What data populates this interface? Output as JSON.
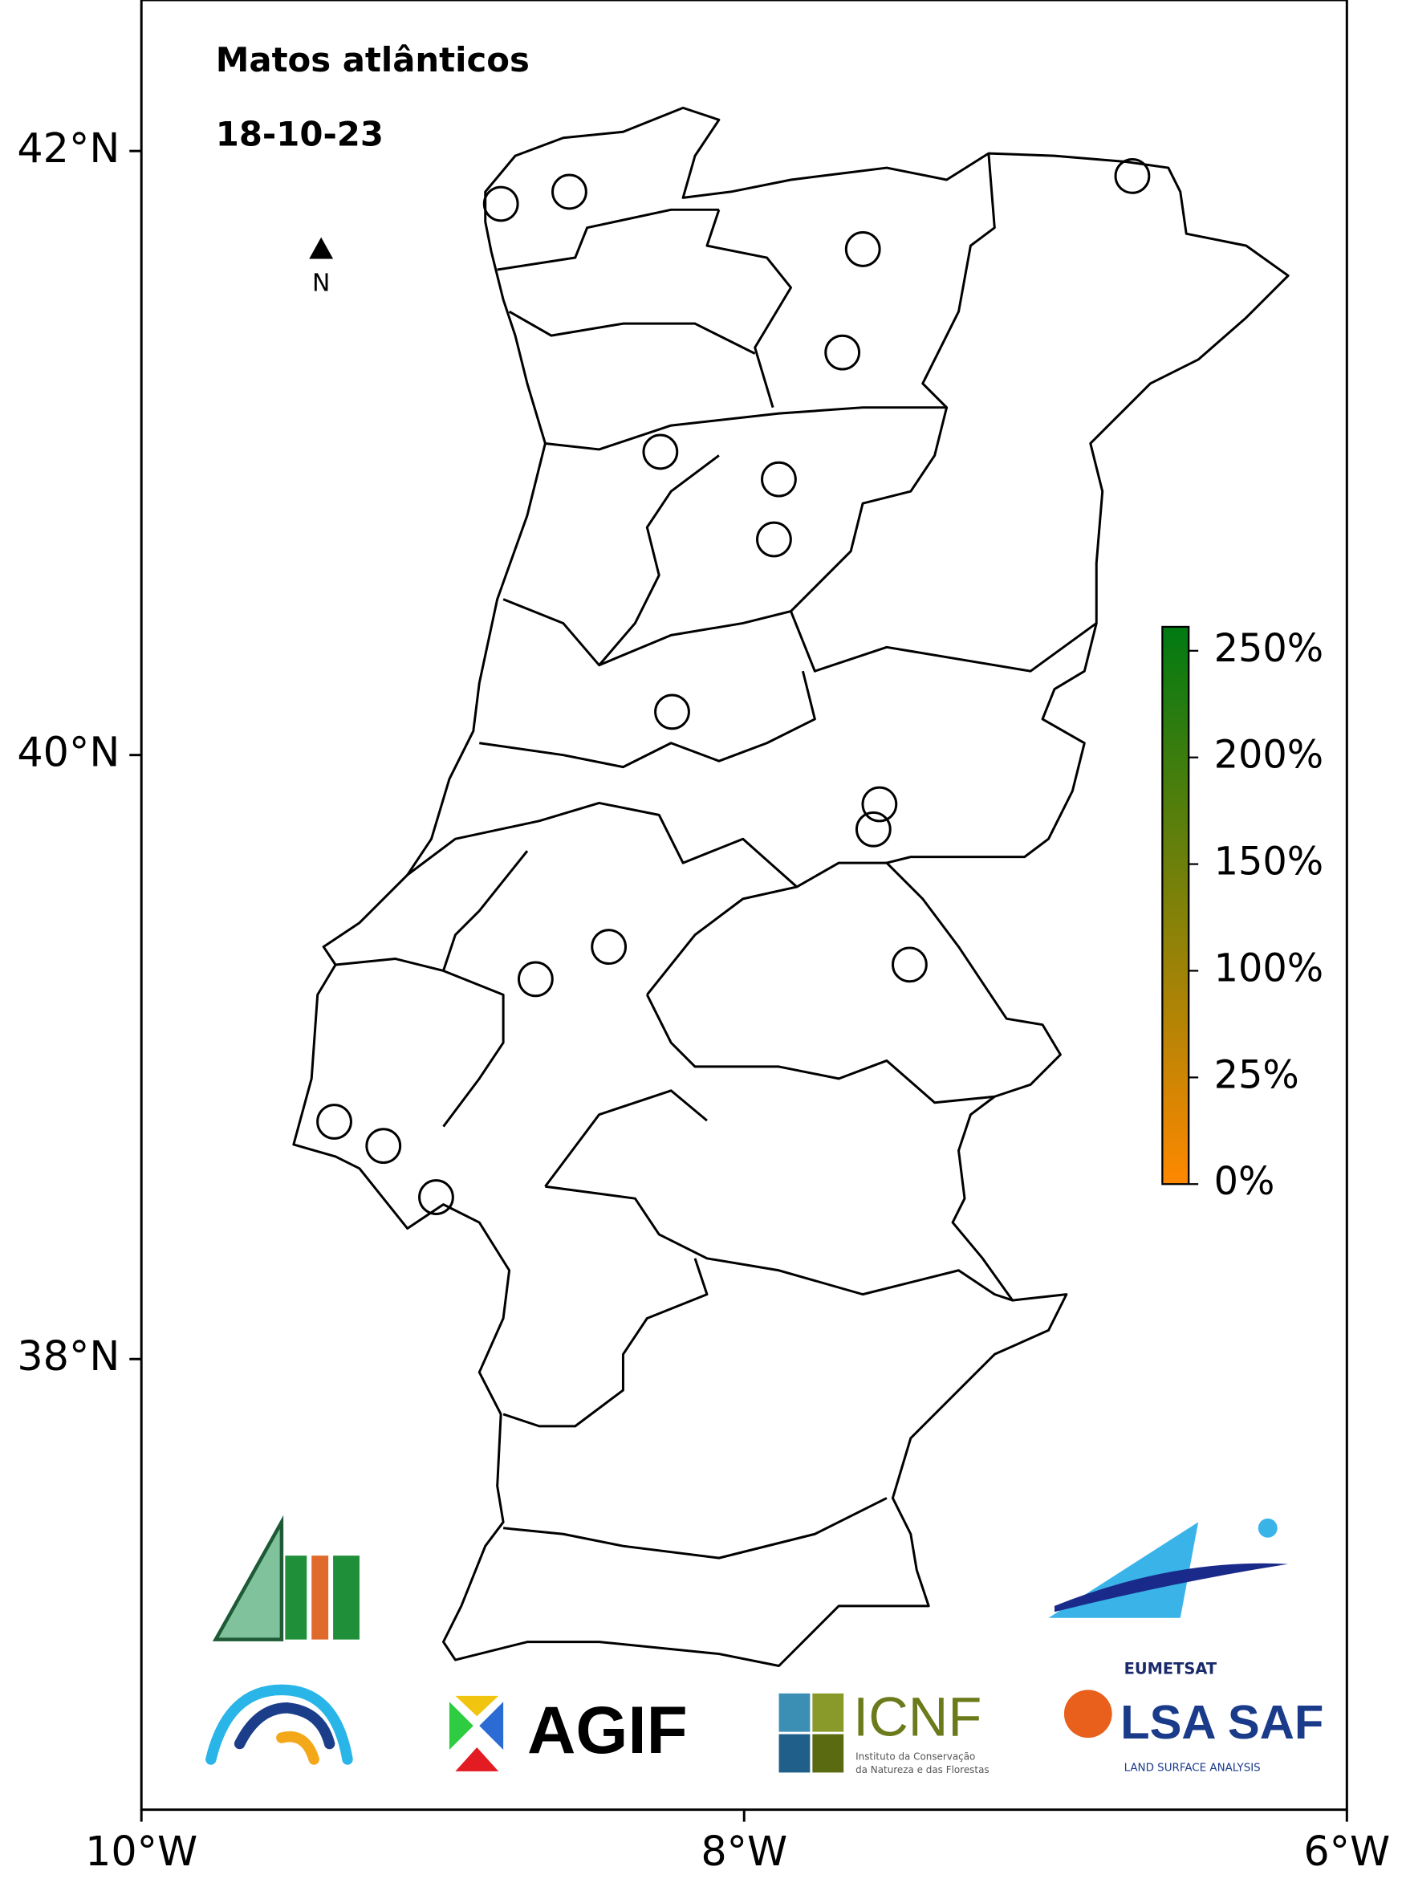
{
  "chart_data": {
    "type": "map",
    "title": "Matos atlânticos",
    "subtitle": "18-10-23",
    "north_label": "N",
    "xlim": [
      -10,
      -6
    ],
    "ylim": [
      36.5,
      42.5
    ],
    "xticks": [
      {
        "value": -10,
        "label": "10°W"
      },
      {
        "value": -8,
        "label": "8°W"
      },
      {
        "value": -6,
        "label": "6°W"
      }
    ],
    "yticks": [
      {
        "value": 38,
        "label": "38°N"
      },
      {
        "value": 40,
        "label": "40°N"
      },
      {
        "value": 42,
        "label": "42°N"
      }
    ],
    "points": {
      "lon": [
        -8.807,
        -8.58,
        -7.606,
        -7.674,
        -6.712,
        -8.278,
        -7.885,
        -7.901,
        -8.239,
        -7.551,
        -7.571,
        -8.449,
        -8.692,
        -7.451,
        -9.36,
        -9.197,
        -9.022
      ],
      "lat": [
        41.825,
        41.865,
        41.675,
        41.333,
        41.917,
        41.004,
        40.913,
        40.714,
        40.143,
        39.837,
        39.754,
        39.365,
        39.258,
        39.306,
        38.786,
        38.706,
        38.536
      ]
    },
    "colorbar": {
      "colors": [
        "#ff8800",
        "#007a12"
      ],
      "ticks": [
        {
          "value": 0,
          "label": "0%"
        },
        {
          "value": 25,
          "label": "25%"
        },
        {
          "value": 100,
          "label": "100%"
        },
        {
          "value": 150,
          "label": "150%"
        },
        {
          "value": 200,
          "label": "200%"
        },
        {
          "value": 250,
          "label": "250%"
        }
      ]
    }
  },
  "logos": {
    "agif": "AGIF",
    "icnf": "ICNF",
    "icnf_sub1": "Instituto da Conservação",
    "icnf_sub2": "da Natureza e das Florestas",
    "eumetsat": "EUMETSAT",
    "lsasaf": "LSA SAF",
    "lsasaf_sub": "LAND SURFACE ANALYSIS"
  }
}
